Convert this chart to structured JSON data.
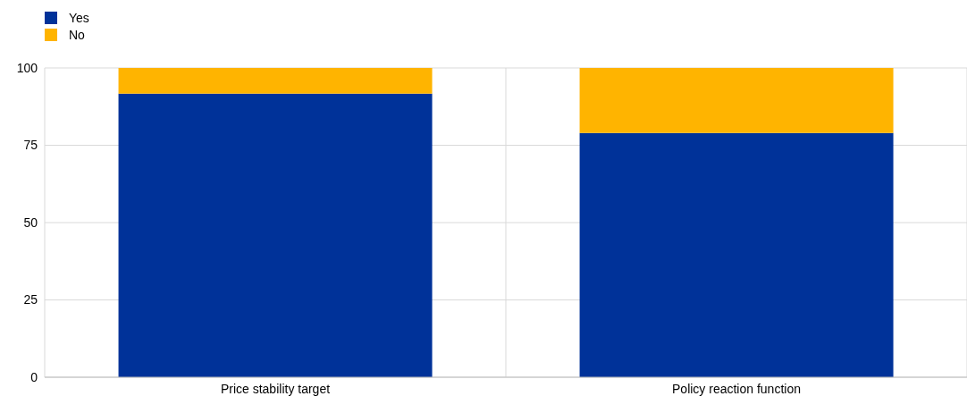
{
  "chart_data": {
    "type": "bar",
    "stacked": true,
    "categories": [
      "Price stability target",
      "Policy reaction function"
    ],
    "series": [
      {
        "name": "Yes",
        "color": "#003299",
        "values": [
          91.7,
          79
        ]
      },
      {
        "name": "No",
        "color": "#ffb400",
        "values": [
          8.3,
          21
        ]
      }
    ],
    "ylim": [
      0,
      100
    ],
    "yticks": [
      0,
      25,
      50,
      75,
      100
    ],
    "grid": true,
    "legend": "top left"
  }
}
